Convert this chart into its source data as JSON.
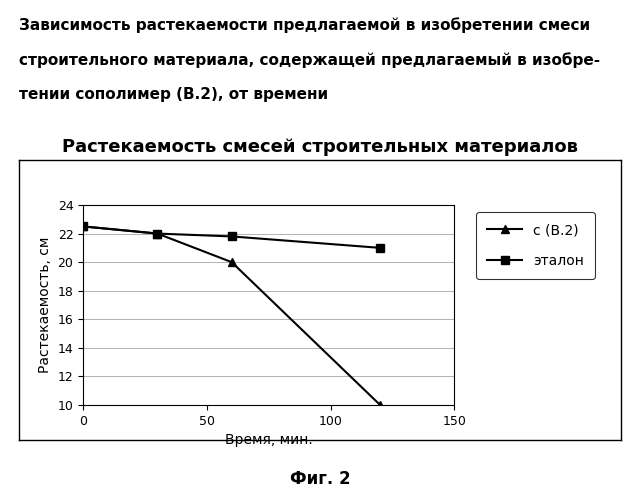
{
  "title": "Растекаемость смесей строительных материалов",
  "xlabel": "Время, мин.",
  "ylabel": "Растекаемость, см",
  "header_lines": [
    "Зависимость растекаемости предлагаемой в изобретении смеси",
    "строительного материала, содержащей предлагаемый в изобре-",
    "тении сополимер (В.2), от времени"
  ],
  "footer_text": "Фиг. 2",
  "series": [
    {
      "label": "с (В.2)",
      "x": [
        0,
        30,
        60,
        120
      ],
      "y": [
        22.5,
        22.0,
        20.0,
        10.0
      ],
      "color": "#000000",
      "marker": "^",
      "linestyle": "-"
    },
    {
      "label": "эталон",
      "x": [
        0,
        30,
        60,
        120
      ],
      "y": [
        22.5,
        22.0,
        21.8,
        21.0
      ],
      "color": "#000000",
      "marker": "s",
      "linestyle": "-"
    }
  ],
  "xlim": [
    0,
    150
  ],
  "ylim": [
    10,
    24
  ],
  "xticks": [
    0,
    50,
    100,
    150
  ],
  "yticks": [
    10,
    12,
    14,
    16,
    18,
    20,
    22,
    24
  ],
  "background_color": "#ffffff",
  "chart_bg_color": "#ffffff",
  "title_fontsize": 13,
  "label_fontsize": 10,
  "tick_fontsize": 9,
  "legend_fontsize": 10,
  "header_fontsize": 11,
  "footer_fontsize": 12
}
